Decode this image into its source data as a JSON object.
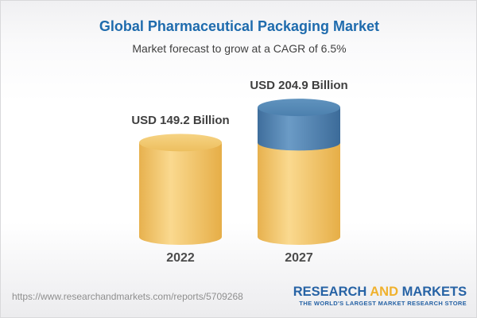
{
  "header": {
    "title": "Global Pharmaceutical Packaging Market",
    "subtitle": "Market forecast to grow at a CAGR of 6.5%"
  },
  "chart_data": {
    "type": "bar",
    "style": "3d-cylinder",
    "categories": [
      "2022",
      "2027"
    ],
    "values": [
      149.2,
      204.9
    ],
    "unit": "USD Billion",
    "value_labels": [
      "USD 149.2 Billion",
      "USD 204.9 Billion"
    ],
    "cagr_pct": 6.5,
    "legend": false,
    "note": "2027 cylinder is gold up to the 2022 level (149.2) with the growth segment above it shown in blue"
  },
  "footer": {
    "url": "https://www.researchandmarkets.com/reports/5709268",
    "logo": {
      "word1": "RESEARCH",
      "word2": "AND",
      "word3": "MARKETS",
      "tagline": "THE WORLD'S LARGEST MARKET RESEARCH STORE"
    }
  },
  "colors": {
    "title_blue": "#1e6bad",
    "text_dark": "#3f3f3f",
    "year_gray": "#4c4c4c",
    "url_gray": "#8f8f8f",
    "logo_blue": "#2763a5",
    "logo_gold": "#f0b12d",
    "gold_edge_left": "#e7b14e",
    "gold_highlight": "#fad98f",
    "gold_edge_right": "#e6ae47",
    "gold_top_light": "#f6d383",
    "gold_top_dark": "#edbf5f",
    "blue_edge_left": "#3f6e9c",
    "blue_highlight": "#6b9bc6",
    "blue_edge_right": "#3c6b99",
    "blue_top_light": "#6093be",
    "blue_top_dark": "#4c80ae"
  }
}
